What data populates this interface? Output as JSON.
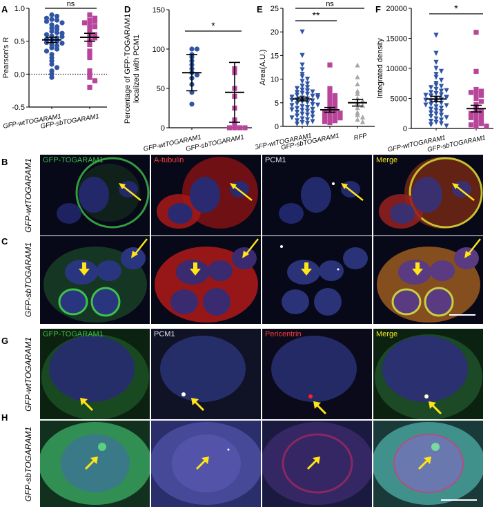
{
  "panels": {
    "A": {
      "letter": "A"
    },
    "B": {
      "letter": "B"
    },
    "C": {
      "letter": "C"
    },
    "D": {
      "letter": "D"
    },
    "E": {
      "letter": "E"
    },
    "F": {
      "letter": "F"
    },
    "G": {
      "letter": "G"
    },
    "H": {
      "letter": "H"
    }
  },
  "chart_data": [
    {
      "id": "A",
      "type": "scatter",
      "ylabel": "Pearson's R",
      "ylim": [
        -0.5,
        1.0
      ],
      "yticks": [
        "-0.5",
        "0.0",
        "0.5",
        "1.0"
      ],
      "categories": [
        "GFP-wtTOGARAM1",
        "GFP-sbTOGARAM1"
      ],
      "significance": [
        "ns"
      ],
      "color": [
        "#2f55a4",
        "#b8459a"
      ],
      "marker": [
        "circle",
        "square"
      ],
      "mean": [
        0.52,
        0.56
      ],
      "sem": [
        0.04,
        0.06
      ],
      "series": [
        {
          "values": [
            0.9,
            0.88,
            0.85,
            0.83,
            0.82,
            0.8,
            0.78,
            0.75,
            0.72,
            0.7,
            0.68,
            0.65,
            0.63,
            0.6,
            0.58,
            0.55,
            0.53,
            0.52,
            0.5,
            0.48,
            0.45,
            0.43,
            0.4,
            0.38,
            0.35,
            0.3,
            0.25,
            0.2,
            0.15,
            0.1,
            0.05,
            0.0,
            -0.05,
            0.62,
            0.57,
            0.47
          ]
        },
        {
          "values": [
            0.9,
            0.85,
            0.82,
            0.8,
            0.78,
            0.75,
            0.72,
            0.7,
            0.65,
            0.6,
            0.58,
            0.55,
            0.5,
            0.45,
            0.35,
            0.3,
            0.25,
            0.05,
            0.0,
            -0.05,
            -0.1,
            -0.2
          ]
        }
      ]
    },
    {
      "id": "D",
      "type": "scatter",
      "ylabel": "Percentage of GFP-TOGARAM1 localized with PCM1",
      "ylim": [
        0,
        150
      ],
      "yticks": [
        "0",
        "50",
        "100",
        "150"
      ],
      "categories": [
        "GFP-wtTOGARAM1",
        "GFP-sbTOGARAM1"
      ],
      "significance": [
        "*"
      ],
      "color": [
        "#2f55a4",
        "#b8459a"
      ],
      "marker": [
        "circle",
        "square"
      ],
      "mean": [
        70,
        45
      ],
      "sd": [
        23,
        38
      ],
      "series": [
        {
          "values": [
            100,
            100,
            93,
            90,
            85,
            80,
            75,
            70,
            67,
            63,
            55,
            45,
            30
          ]
        },
        {
          "values": [
            75,
            70,
            50,
            40,
            25,
            10,
            5,
            0,
            0,
            0,
            0
          ]
        }
      ]
    },
    {
      "id": "E",
      "type": "scatter",
      "ylabel": "Area(A.U.)",
      "ylim": [
        0,
        25
      ],
      "yticks": [
        "0",
        "5",
        "10",
        "15",
        "20",
        "25"
      ],
      "categories": [
        "GFP-wtTOGARAM1",
        "GFP-sbTOGARAM1",
        "RFP"
      ],
      "significance": [
        "**",
        "ns"
      ],
      "color": [
        "#2f55a4",
        "#b8459a",
        "#a8a8a8"
      ],
      "marker": [
        "triangle-down",
        "square",
        "triangle-up"
      ],
      "mean": [
        5.8,
        3.5,
        5.0
      ],
      "sem": [
        0.4,
        0.5,
        0.7
      ],
      "series": [
        {
          "values": [
            20,
            15,
            13,
            12,
            11,
            10.5,
            10,
            9.5,
            9,
            8.5,
            8.2,
            8,
            7.7,
            7.5,
            7.2,
            7,
            6.8,
            6.6,
            6.4,
            6.2,
            6,
            5.8,
            5.6,
            5.4,
            5.2,
            5,
            4.8,
            4.6,
            4.4,
            4.2,
            4,
            3.8,
            3.6,
            3.4,
            3.2,
            3,
            2.8,
            2.6,
            2.4,
            2.2,
            2,
            1.8,
            1.6,
            1.4,
            1.2,
            1,
            0.8,
            0.6,
            0.5,
            5.5,
            6.5,
            4.5,
            3.5,
            7.3,
            6.1
          ]
        },
        {
          "values": [
            13,
            8,
            7,
            6.5,
            6,
            5.5,
            5,
            4.5,
            4,
            3.8,
            3.5,
            3.2,
            3,
            2.8,
            2.5,
            2.2,
            2,
            1.8,
            1.5,
            1.2,
            1,
            0.8
          ]
        },
        {
          "values": [
            13,
            10.5,
            9,
            7.5,
            7,
            6,
            5.5,
            5,
            4.5,
            4,
            3,
            2.5,
            2,
            1.5,
            1
          ]
        }
      ]
    },
    {
      "id": "F",
      "type": "scatter",
      "ylabel": "Integrated density",
      "ylim": [
        0,
        20000
      ],
      "yticks": [
        "0",
        "5000",
        "10000",
        "15000",
        "20000"
      ],
      "categories": [
        "GFP-wtTOGARAM1",
        "GFP-sbTOGARAM1"
      ],
      "significance": [
        "*"
      ],
      "color": [
        "#2f55a4",
        "#b8459a"
      ],
      "marker": [
        "triangle-down",
        "square"
      ],
      "mean": [
        4900,
        3300
      ],
      "sem": [
        450,
        550
      ],
      "series": [
        {
          "values": [
            15500,
            12500,
            11000,
            10000,
            9500,
            9000,
            8500,
            8000,
            7500,
            7200,
            7000,
            6800,
            6500,
            6200,
            6000,
            5800,
            5600,
            5400,
            5200,
            5000,
            4800,
            4600,
            4400,
            4200,
            4000,
            3800,
            3600,
            3400,
            3200,
            3000,
            2800,
            2600,
            2400,
            2200,
            2000,
            1800,
            1600,
            1400,
            1200,
            1000,
            800,
            600,
            400,
            5100,
            4700,
            3900,
            5500,
            6300
          ]
        },
        {
          "values": [
            16000,
            9500,
            6500,
            6200,
            6000,
            5800,
            5500,
            5000,
            4500,
            4000,
            3500,
            3000,
            2800,
            2500,
            2200,
            2000,
            1800,
            1500,
            1200,
            1000,
            800,
            600,
            400,
            300
          ]
        }
      ]
    }
  ],
  "micrographs": {
    "B": {
      "row_label": "GFP-wtTOGARAM1",
      "channels": [
        {
          "label": "GFP-TOGARAM1",
          "label_color": "#3fc24a"
        },
        {
          "label": "A-tubulin",
          "label_color": "#ff3b3b"
        },
        {
          "label": "PCM1",
          "label_color": "#e8e8f0"
        },
        {
          "label": "Merge",
          "label_color": "#f0e020"
        }
      ]
    },
    "C": {
      "row_label": "GFP-sbTOGARAM1"
    },
    "G": {
      "row_label": "GFP-wtTOGARAM1",
      "channels": [
        {
          "label": "GFP-TOGARAM1",
          "label_color": "#3fc24a"
        },
        {
          "label": "PCM1",
          "label_color": "#e8e8f0"
        },
        {
          "label": "Pericentrin",
          "label_color": "#ff3b3b"
        },
        {
          "label": "Merge",
          "label_color": "#f0e020"
        }
      ]
    },
    "H": {
      "row_label": "GFP-sbTOGARAM1"
    },
    "arrow_color": "#ffe41a",
    "scalebar_color": "#ffffff"
  }
}
